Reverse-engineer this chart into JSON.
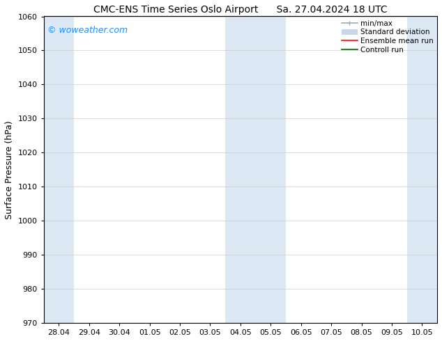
{
  "title": "CMC-ENS Time Series Oslo Airport",
  "title2": "Sa. 27.04.2024 18 UTC",
  "ylabel": "Surface Pressure (hPa)",
  "ylim": [
    970,
    1060
  ],
  "yticks": [
    970,
    980,
    990,
    1000,
    1010,
    1020,
    1030,
    1040,
    1050,
    1060
  ],
  "x_tick_labels": [
    "28.04",
    "29.04",
    "30.04",
    "01.05",
    "02.05",
    "03.05",
    "04.05",
    "05.05",
    "06.05",
    "07.05",
    "08.05",
    "09.05",
    "10.05"
  ],
  "x_tick_positions": [
    0,
    1,
    2,
    3,
    4,
    5,
    6,
    7,
    8,
    9,
    10,
    11,
    12
  ],
  "xlim": [
    -0.5,
    12.5
  ],
  "background_color": "#ffffff",
  "plot_bg_color": "#ffffff",
  "shaded_bands": [
    {
      "x_start": -0.5,
      "x_end": 0.5,
      "color": "#dce9f5"
    },
    {
      "x_start": 5.5,
      "x_end": 7.5,
      "color": "#dce9f5"
    },
    {
      "x_start": 11.5,
      "x_end": 12.5,
      "color": "#dce9f5"
    }
  ],
  "watermark_text": "© woweather.com",
  "watermark_color": "#1e90ff",
  "legend_items": [
    {
      "label": "min/max",
      "color": "#a0a8b0",
      "lw": 1.2
    },
    {
      "label": "Standard deviation",
      "color": "#c8d8ea",
      "lw": 7
    },
    {
      "label": "Ensemble mean run",
      "color": "#ff0000",
      "lw": 1.2
    },
    {
      "label": "Controll run",
      "color": "#006400",
      "lw": 1.2
    }
  ],
  "title_fontsize": 10,
  "axis_label_fontsize": 9,
  "tick_fontsize": 8,
  "watermark_fontsize": 9,
  "legend_fontsize": 7.5
}
